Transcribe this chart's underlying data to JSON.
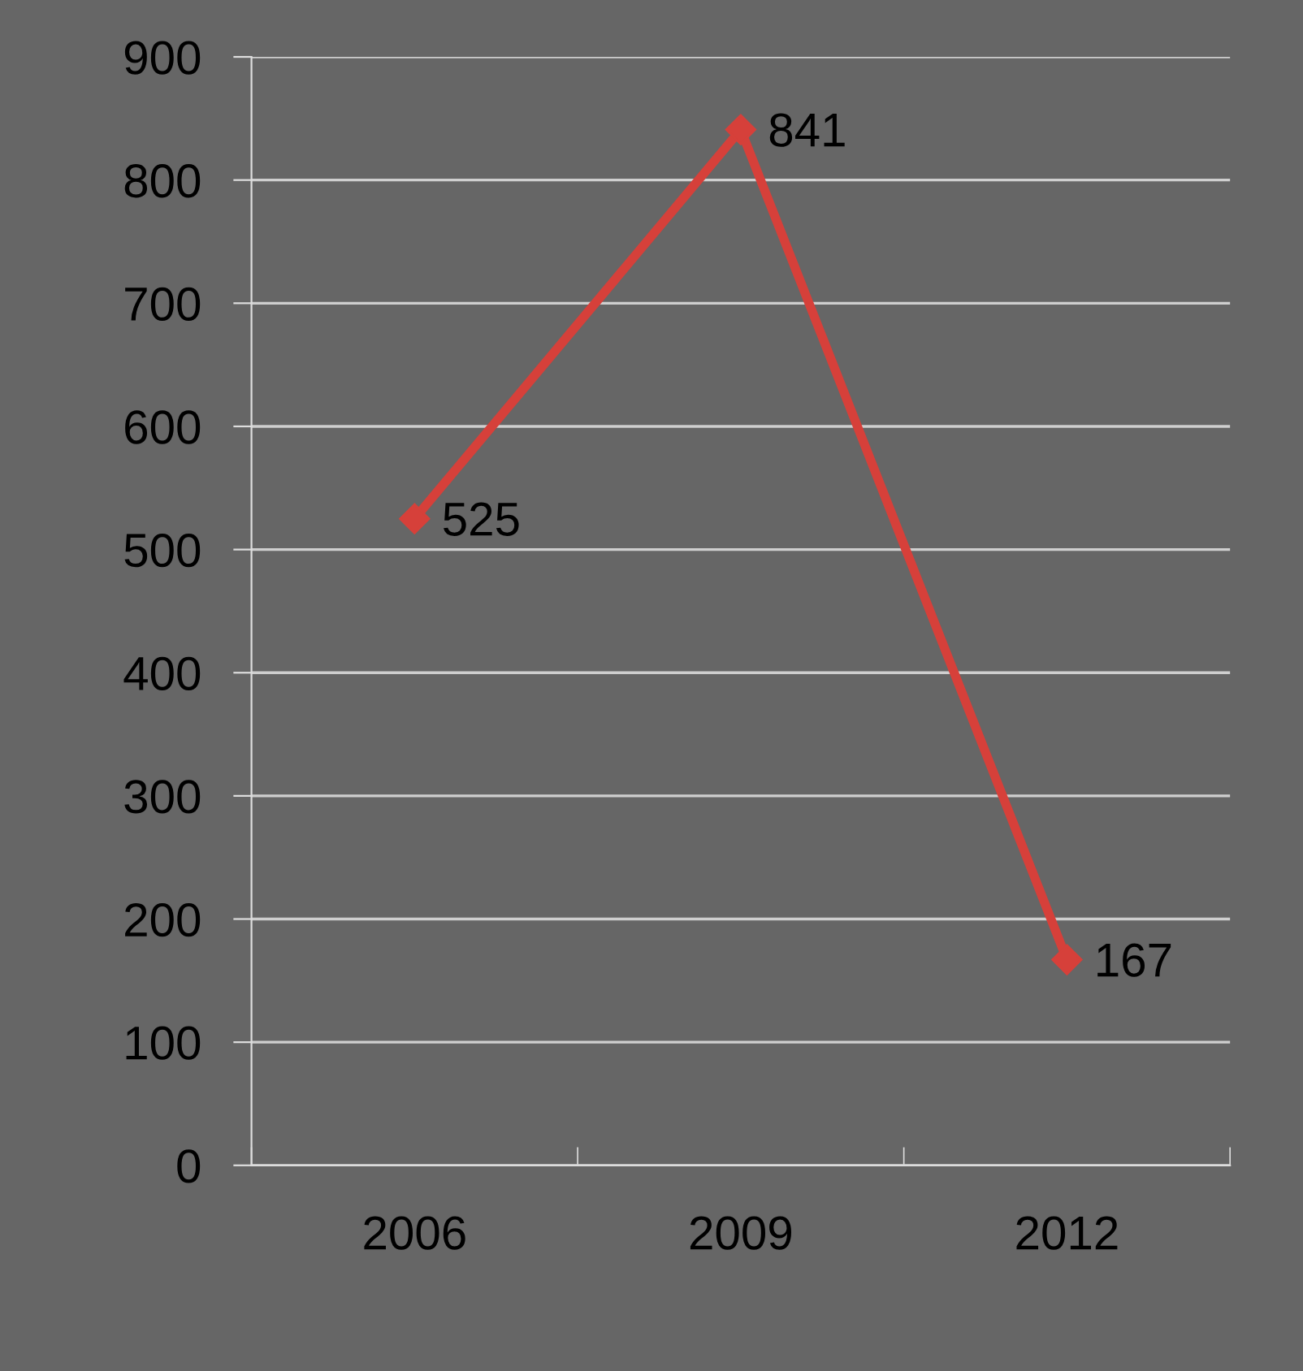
{
  "chart_data": {
    "type": "line",
    "categories": [
      "2006",
      "2009",
      "2012"
    ],
    "series": [
      {
        "color": "#d6403a",
        "values": [
          525,
          841,
          167
        ]
      }
    ],
    "ylim": [
      0,
      900
    ],
    "yticks": [
      0,
      100,
      200,
      300,
      400,
      500,
      600,
      700,
      800,
      900
    ],
    "grid": "y",
    "marker": "diamond",
    "line_style": "solid",
    "data_labels": true
  }
}
